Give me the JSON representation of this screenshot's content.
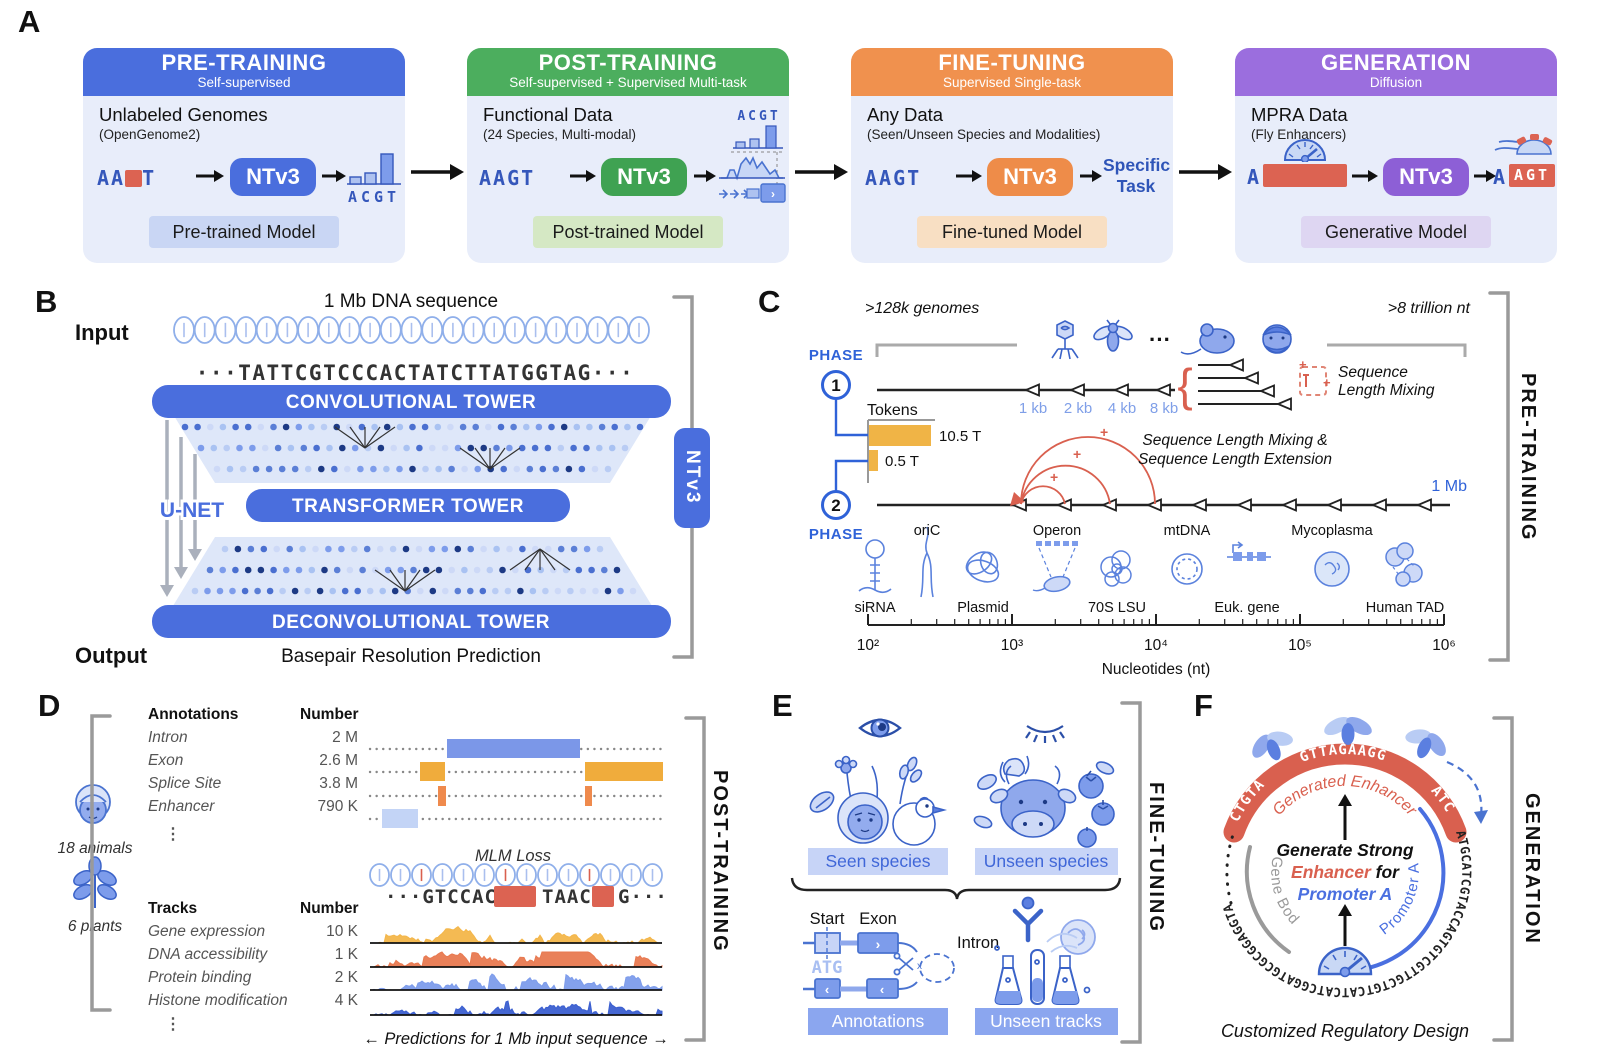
{
  "colors": {
    "blue": "#4a6edd",
    "green": "#4cae5e",
    "orange": "#f0914e",
    "purple": "#9b6ede",
    "red": "#dc6352",
    "token_orange": "#f0b446",
    "kb_blue": "#7f9fe8",
    "icon_blue": "#4a73d0",
    "gray_bracket": "#9a9a9a"
  },
  "panelA": {
    "label": "A",
    "cards": [
      {
        "header": "PRE-TRAINING",
        "sub": "Self-supervised",
        "ds": "Unlabeled Genomes",
        "note": "(OpenGenome2)",
        "seqA": "AA",
        "seqB": "T",
        "model": "NTv3",
        "out": "ACGT",
        "badge": "Pre-trained Model"
      },
      {
        "header": "POST-TRAINING",
        "sub": "Self-supervised + Supervised Multi-task",
        "ds": "Functional Data",
        "note": "(24 Species, Multi-modal)",
        "seq": "AAGT",
        "model": "NTv3",
        "out": "ACGT",
        "badge": "Post-trained Model"
      },
      {
        "header": "FINE-TUNING",
        "sub": "Supervised Single-task",
        "ds": "Any Data",
        "note": "(Seen/Unseen Species and Modalities)",
        "seq": "AAGT",
        "model": "NTv3",
        "out1": "Specific",
        "out2": "Task",
        "badge": "Fine-tuned Model"
      },
      {
        "header": "GENERATION",
        "sub": "Diffusion",
        "ds": "MPRA Data",
        "note": "(Fly Enhancers)",
        "seqA": "A",
        "model": "NTv3",
        "outA": "A",
        "outBox": "AGT",
        "badge": "Generative Model"
      }
    ]
  },
  "panelB": {
    "label": "B",
    "title": "1 Mb DNA sequence",
    "input_label": "Input",
    "sequence": "···TATTCGTCCCACTATCTTATGGTAG···",
    "conv": "CONVOLUTIONAL TOWER",
    "transformer": "TRANSFORMER TOWER",
    "deconv": "DECONVOLUTIONAL TOWER",
    "unet": "U-NET",
    "output_label": "Output",
    "output_desc": "Basepair Resolution Prediction",
    "model_tab": "NTv3"
  },
  "panelC": {
    "label": "C",
    "genomes": ">128k genomes",
    "trillion": ">8 trillion nt",
    "species_dots": "···",
    "phase": "PHASE",
    "phase1": "1",
    "phase2": "2",
    "kb": [
      "1 kb",
      "2 kb",
      "4 kb",
      "8 kb"
    ],
    "tokens_label": "Tokens",
    "tokens_phase1": "10.5 T",
    "tokens_phase2": "0.5 T",
    "tokens_values": [
      10.5,
      0.5
    ],
    "mixing": [
      "Sequence",
      "Length Mixing"
    ],
    "mixing_ext": [
      "Sequence Length Mixing &",
      "Sequence Length Extension"
    ],
    "mb": "1 Mb",
    "items_top": [
      "oriC",
      "Operon",
      "mtDNA",
      "Mycoplasma"
    ],
    "items_bottom": [
      "siRNA",
      "Plasmid",
      "70S LSU",
      "Euk. gene",
      "Human TAD"
    ],
    "axis_ticks": [
      "10²",
      "10³",
      "10⁴",
      "10⁵",
      "10⁶"
    ],
    "axis_label": "Nucleotides (nt)",
    "side": "PRE-TRAINING"
  },
  "panelD": {
    "label": "D",
    "animals": "18 animals",
    "plants": "6 plants",
    "ellipsis": "⋮",
    "ann_header": [
      "Annotations",
      "Number"
    ],
    "ann_rows": [
      [
        "Intron",
        "2 M"
      ],
      [
        "Exon",
        "2.6 M"
      ],
      [
        "Splice Site",
        "3.8 M"
      ],
      [
        "Enhancer",
        "790 K"
      ]
    ],
    "tracks_header": [
      "Tracks",
      "Number"
    ],
    "track_rows": [
      [
        "Gene expression",
        "10 K"
      ],
      [
        "DNA accessibility",
        "1 K"
      ],
      [
        "Protein binding",
        "2 K"
      ],
      [
        "Histone modification",
        "4 K"
      ]
    ],
    "mlm": "MLM Loss",
    "seq_pre": "···GTCCAC",
    "seq_mid": "TAAC",
    "seq_post": "G···",
    "caption": "← Predictions for 1 Mb input sequence →",
    "side": "POST-TRAINING"
  },
  "panelE": {
    "label": "E",
    "seen": "Seen species",
    "unseen": "Unseen species",
    "start": "Start",
    "exon": "Exon",
    "intron": "Intron",
    "atg": "ATG",
    "annotations": "Annotations",
    "unseen_tracks": "Unseen tracks",
    "side": "FINE-TUNING"
  },
  "panelF": {
    "label": "F",
    "band": [
      "CTGTA",
      "GTTAGAAGG",
      "ATC"
    ],
    "ring_seq": "ATGCATCGTACCAGTGTCGTTGCTGTCATCATCGGATGCGCGGAGGTAGG",
    "gen_enh": "Generated Enhancer",
    "gene_body": "Gene Body",
    "promoter": "Promoter A",
    "center_l1": "Generate Strong",
    "center_l2a": "Enhancer",
    "center_l2b": " for",
    "center_l3": "Promoter A",
    "caption": "Customized Regulatory Design",
    "side": "GENERATION"
  }
}
